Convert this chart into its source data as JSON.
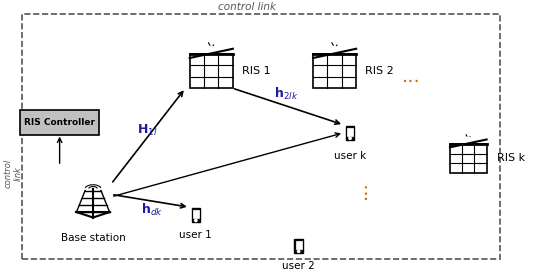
{
  "fig_width": 5.36,
  "fig_height": 2.78,
  "dpi": 100,
  "bg_color": "#ffffff",
  "control_link_label": "control link",
  "control_link_color": "#555555",
  "ris_controller_label": "RIS Controller",
  "ris_controller_box_color": "#c0c0c0",
  "ris_controller_text_color": "#000000",
  "base_station_label": "Base station",
  "ris1_label": "RIS 1",
  "ris2_label": "RIS 2",
  "risk_label": "RIS k",
  "user1_label": "user 1",
  "user2_label": "user 2",
  "userk_label": "user k",
  "h_1l_label": "H_{1l}",
  "h_2lk_label": "h_{2lk}",
  "h_dk_label": "h_{dk}",
  "arrow_color": "#000000",
  "channel_color": "#1a1a9a",
  "orange_color": "#cc6600"
}
